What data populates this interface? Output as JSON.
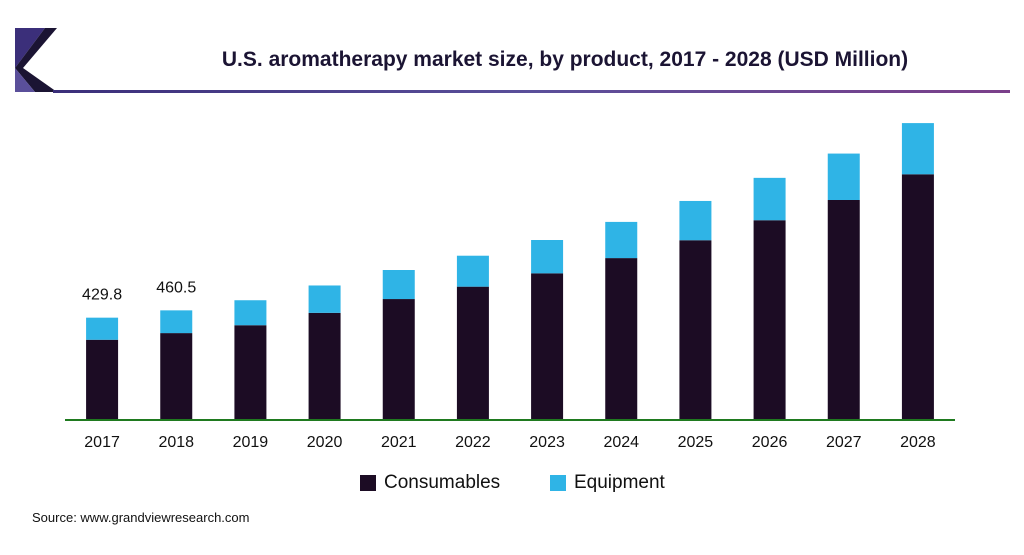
{
  "colors": {
    "consumables": "#1c0c24",
    "equipment": "#2fb4e6",
    "axis": "#1f7a1f",
    "brand": "#3b2f7a"
  },
  "header": {
    "title": "U.S. aromatherapy market size, by product, 2017 - 2028 (USD Million)"
  },
  "legend": {
    "consumables_label": "Consumables",
    "equipment_label": "Equipment"
  },
  "source": "Source: www.grandviewresearch.com",
  "chart_data": {
    "type": "bar",
    "stacked": true,
    "title": "U.S. aromatherapy market size, by product, 2017 - 2028 (USD Million)",
    "categories": [
      "2017",
      "2018",
      "2019",
      "2020",
      "2021",
      "2022",
      "2023",
      "2024",
      "2025",
      "2026",
      "2027",
      "2028"
    ],
    "series": [
      {
        "name": "Consumables",
        "values": [
          337,
          365,
          398,
          450,
          508,
          560,
          616,
          680,
          755,
          839,
          924,
          1032
        ]
      },
      {
        "name": "Equipment",
        "values": [
          92.8,
          95.5,
          105,
          115,
          122,
          130,
          140,
          152,
          165,
          178,
          195,
          215
        ]
      }
    ],
    "data_labels": [
      {
        "category": "2017",
        "text": "429.8"
      },
      {
        "category": "2018",
        "text": "460.5"
      }
    ],
    "ylim": [
      0,
      1260
    ],
    "legend_position": "bottom",
    "grid": false
  }
}
